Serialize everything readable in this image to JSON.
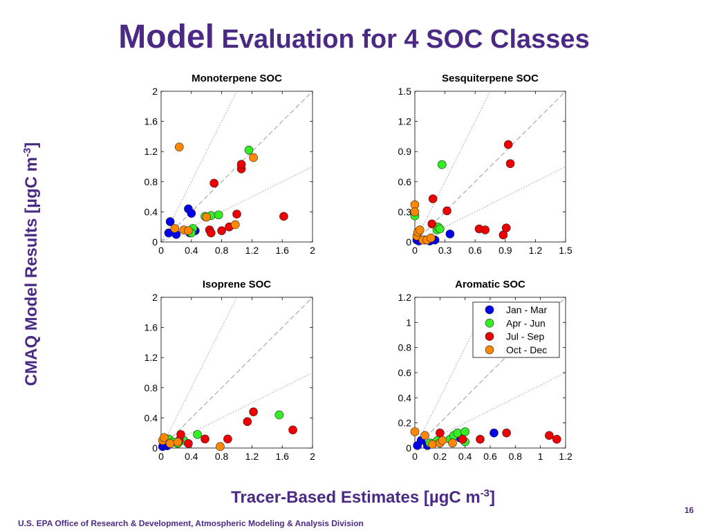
{
  "slide": {
    "title_big": "Model",
    "title_rest": " Evaluation for 4 SOC Classes",
    "y_title_main": "CMAQ Model Results [µgC m",
    "y_title_sup": "-3",
    "y_title_end": "]",
    "x_title_main": "Tracer-Based Estimates [µgC m",
    "x_title_sup": "-3",
    "x_title_end": "]",
    "page_number": "16",
    "footer": "U.S. EPA Office of Research & Development, Atmospheric Modeling & Analysis Division"
  },
  "colors": {
    "title": "#4b2a86",
    "Jan - Mar": "#0000ee",
    "Apr - Jun": "#33ee22",
    "Jul - Sep": "#ee0000",
    "Oct - Dec": "#ff8800"
  },
  "chart_data": [
    {
      "type": "scatter",
      "title": "Monoterpene SOC",
      "xlim": [
        0,
        2
      ],
      "ylim": [
        0,
        2
      ],
      "xticks": [
        "0",
        "0.4",
        "0.8",
        "1.2",
        "1.6",
        "2"
      ],
      "yticks": [
        "0",
        "0.4",
        "0.8",
        "1.2",
        "1.6",
        "2"
      ],
      "reference_lines": [
        {
          "slope": 1,
          "style": "dashed"
        },
        {
          "slope": 2,
          "style": "dotted"
        },
        {
          "slope": 0.5,
          "style": "dotted"
        }
      ],
      "series": [
        {
          "name": "Jan - Mar",
          "points": [
            [
              0.1,
              0.12
            ],
            [
              0.12,
              0.27
            ],
            [
              0.2,
              0.1
            ],
            [
              0.36,
              0.44
            ],
            [
              0.4,
              0.38
            ],
            [
              0.38,
              0.12
            ],
            [
              0.45,
              0.15
            ]
          ]
        },
        {
          "name": "Apr - Jun",
          "points": [
            [
              0.42,
              0.18
            ],
            [
              0.58,
              0.34
            ],
            [
              0.66,
              0.35
            ],
            [
              0.76,
              0.36
            ],
            [
              1.16,
              1.22
            ],
            [
              0.4,
              0.12
            ]
          ]
        },
        {
          "name": "Jul - Sep",
          "points": [
            [
              0.7,
              0.78
            ],
            [
              0.64,
              0.16
            ],
            [
              0.66,
              0.12
            ],
            [
              0.8,
              0.15
            ],
            [
              0.9,
              0.2
            ],
            [
              1.0,
              0.37
            ],
            [
              1.06,
              0.97
            ],
            [
              1.06,
              1.03
            ],
            [
              1.62,
              0.34
            ]
          ]
        },
        {
          "name": "Oct - Dec",
          "points": [
            [
              0.24,
              1.26
            ],
            [
              0.18,
              0.18
            ],
            [
              0.3,
              0.16
            ],
            [
              0.36,
              0.15
            ],
            [
              0.6,
              0.33
            ],
            [
              0.98,
              0.23
            ],
            [
              1.22,
              1.12
            ]
          ]
        }
      ]
    },
    {
      "type": "scatter",
      "title": "Sesquiterpene SOC",
      "xlim": [
        0,
        1.5
      ],
      "ylim": [
        0,
        1.5
      ],
      "xticks": [
        "0",
        "0.3",
        "0.6",
        "0.9",
        "1.2",
        "1.5"
      ],
      "yticks": [
        "0",
        "0.3",
        "0.6",
        "0.9",
        "1.2",
        "1.5"
      ],
      "reference_lines": [
        {
          "slope": 1,
          "style": "dashed"
        },
        {
          "slope": 2,
          "style": "dotted"
        },
        {
          "slope": 0.5,
          "style": "dotted"
        }
      ],
      "series": [
        {
          "name": "Jan - Mar",
          "points": [
            [
              0.02,
              0.02
            ],
            [
              0.04,
              0.01
            ],
            [
              0.1,
              0.02
            ],
            [
              0.15,
              0.01
            ],
            [
              0.2,
              0.02
            ],
            [
              0.35,
              0.08
            ]
          ]
        },
        {
          "name": "Apr - Jun",
          "points": [
            [
              0.0,
              0.26
            ],
            [
              0.22,
              0.12
            ],
            [
              0.23,
              0.15
            ],
            [
              0.25,
              0.13
            ],
            [
              0.27,
              0.77
            ]
          ]
        },
        {
          "name": "Jul - Sep",
          "points": [
            [
              0.18,
              0.43
            ],
            [
              0.17,
              0.18
            ],
            [
              0.32,
              0.31
            ],
            [
              0.64,
              0.13
            ],
            [
              0.7,
              0.12
            ],
            [
              0.88,
              0.07
            ],
            [
              0.91,
              0.14
            ],
            [
              0.93,
              0.97
            ],
            [
              0.95,
              0.78
            ]
          ]
        },
        {
          "name": "Oct - Dec",
          "points": [
            [
              0.0,
              0.37
            ],
            [
              0.0,
              0.3
            ],
            [
              0.02,
              0.06
            ],
            [
              0.03,
              0.1
            ],
            [
              0.05,
              0.12
            ],
            [
              0.08,
              0.02
            ],
            [
              0.12,
              0.02
            ],
            [
              0.16,
              0.04
            ]
          ]
        }
      ]
    },
    {
      "type": "scatter",
      "title": "Isoprene SOC",
      "xlim": [
        0,
        2
      ],
      "ylim": [
        0,
        2
      ],
      "xticks": [
        "0",
        "0.4",
        "0.8",
        "1.2",
        "1.6",
        "2"
      ],
      "yticks": [
        "0",
        "0.4",
        "0.8",
        "1.2",
        "1.6",
        "2"
      ],
      "reference_lines": [
        {
          "slope": 1,
          "style": "dashed"
        },
        {
          "slope": 2,
          "style": "dotted"
        },
        {
          "slope": 0.5,
          "style": "dotted"
        }
      ],
      "series": [
        {
          "name": "Jan - Mar",
          "points": [
            [
              0.02,
              0.02
            ],
            [
              0.05,
              0.05
            ],
            [
              0.08,
              0.03
            ]
          ]
        },
        {
          "name": "Apr - Jun",
          "points": [
            [
              0.1,
              0.12
            ],
            [
              0.16,
              0.08
            ],
            [
              0.22,
              0.06
            ],
            [
              0.3,
              0.1
            ],
            [
              0.48,
              0.18
            ],
            [
              1.56,
              0.44
            ]
          ]
        },
        {
          "name": "Jul - Sep",
          "points": [
            [
              0.24,
              0.1
            ],
            [
              0.26,
              0.18
            ],
            [
              0.36,
              0.06
            ],
            [
              0.58,
              0.12
            ],
            [
              0.88,
              0.12
            ],
            [
              1.14,
              0.35
            ],
            [
              1.22,
              0.48
            ],
            [
              1.74,
              0.24
            ]
          ]
        },
        {
          "name": "Oct - Dec",
          "points": [
            [
              0.02,
              0.1
            ],
            [
              0.04,
              0.14
            ],
            [
              0.12,
              0.06
            ],
            [
              0.22,
              0.08
            ],
            [
              0.78,
              0.02
            ]
          ]
        }
      ]
    },
    {
      "type": "scatter",
      "title": "Aromatic SOC",
      "xlim": [
        0,
        1.2
      ],
      "ylim": [
        0,
        1.2
      ],
      "xticks": [
        "0",
        "0.2",
        "0.4",
        "0.6",
        "0.8",
        "1",
        "1.2"
      ],
      "yticks": [
        "0",
        "0.2",
        "0.4",
        "0.6",
        "0.8",
        "1",
        "1.2"
      ],
      "legend": {
        "position": "top-right",
        "entries": [
          "Jan - Mar",
          "Apr - Jun",
          "Jul - Sep",
          "Oct - Dec"
        ]
      },
      "reference_lines": [
        {
          "slope": 1,
          "style": "dashed"
        },
        {
          "slope": 2,
          "style": "dotted"
        },
        {
          "slope": 0.5,
          "style": "dotted"
        }
      ],
      "series": [
        {
          "name": "Jan - Mar",
          "points": [
            [
              0.02,
              0.02
            ],
            [
              0.05,
              0.06
            ],
            [
              0.1,
              0.02
            ],
            [
              0.2,
              0.05
            ],
            [
              0.36,
              0.08
            ],
            [
              0.63,
              0.12
            ]
          ]
        },
        {
          "name": "Apr - Jun",
          "points": [
            [
              0.12,
              0.04
            ],
            [
              0.18,
              0.06
            ],
            [
              0.28,
              0.07
            ],
            [
              0.31,
              0.1
            ],
            [
              0.34,
              0.12
            ],
            [
              0.4,
              0.13
            ],
            [
              0.4,
              0.05
            ]
          ]
        },
        {
          "name": "Jul - Sep",
          "points": [
            [
              0.2,
              0.12
            ],
            [
              0.38,
              0.07
            ],
            [
              0.52,
              0.07
            ],
            [
              0.73,
              0.12
            ],
            [
              1.07,
              0.1
            ],
            [
              1.13,
              0.07
            ]
          ]
        },
        {
          "name": "Oct - Dec",
          "points": [
            [
              0.0,
              0.13
            ],
            [
              0.08,
              0.1
            ],
            [
              0.14,
              0.03
            ],
            [
              0.2,
              0.04
            ],
            [
              0.22,
              0.06
            ],
            [
              0.3,
              0.04
            ]
          ]
        }
      ]
    }
  ]
}
